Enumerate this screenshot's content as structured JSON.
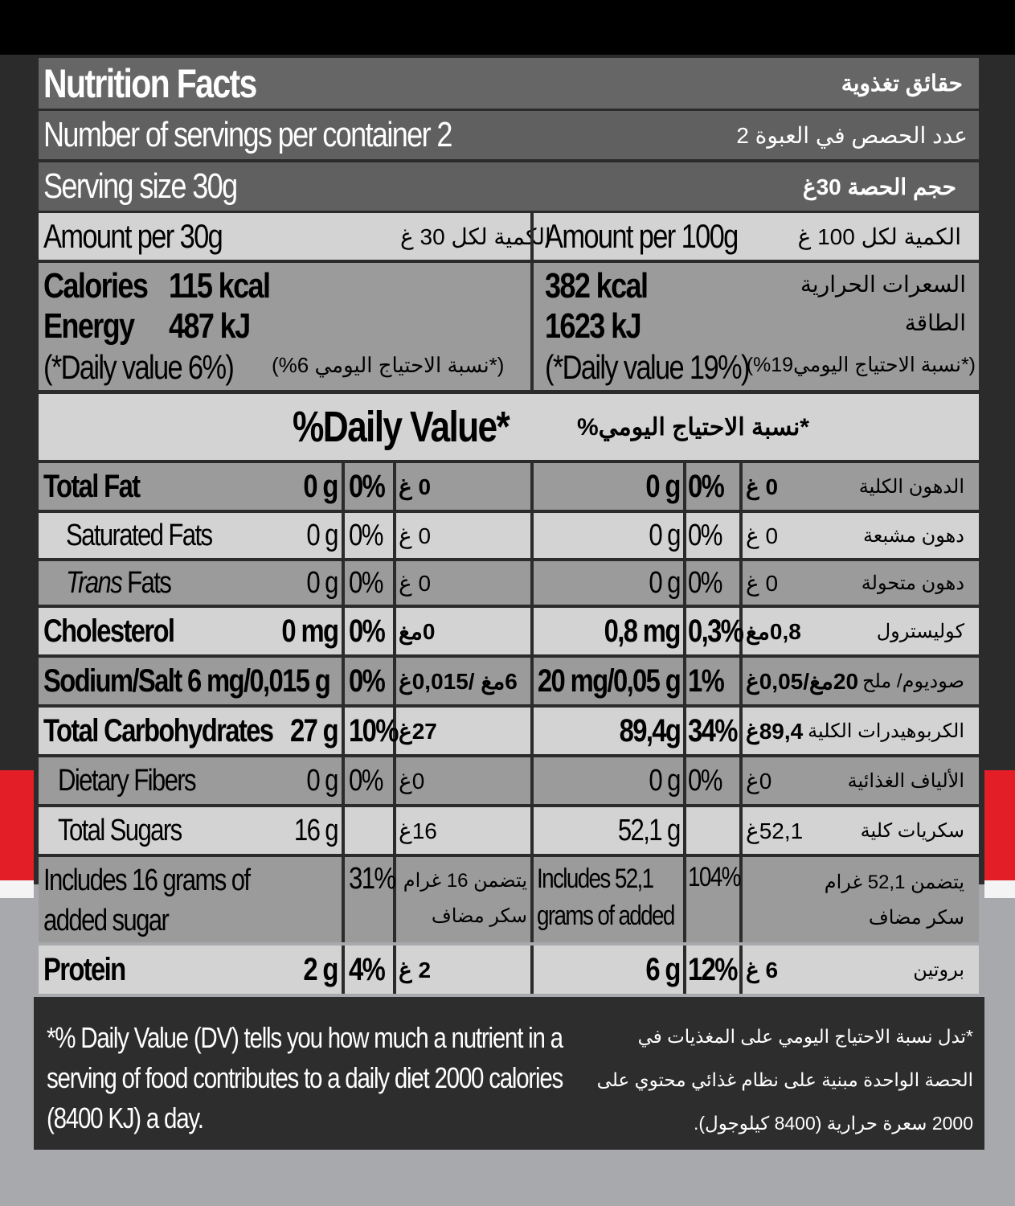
{
  "header": {
    "title": "Nutrition Facts",
    "title_ar": "حقائق تغذوية",
    "servings": "Number of servings per container 2",
    "servings_ar": "عدد الحصص في العبوة 2",
    "serving_size": "Serving size 30g",
    "serving_size_ar": "حجم الحصة 30غ"
  },
  "amount": {
    "left": "Amount per 30g",
    "left_ar": "الكمية لكل 30 غ",
    "right": "Amount per 100g",
    "right_ar": "الكمية لكل 100 غ"
  },
  "energy": {
    "cal_label": "Calories",
    "cal_30": "115 kcal",
    "energy_label": "Energy",
    "energy_30": "487 kJ",
    "dv_30": "(*Daily value 6%)",
    "dv_30_ar": "(*نسبة الاحتياج اليومي 6%)",
    "cal_100": "382 kcal",
    "energy_100": "1623 kJ",
    "dv_100": "(*Daily value 19%)",
    "dv_100_ar": "(*نسبة الاحتياج اليومي19%)",
    "cal_ar": "السعرات الحرارية",
    "energy_ar": "الطاقة"
  },
  "dv_header": {
    "en": "%Daily Value*",
    "ar": "*نسبة الاحتياج اليومي%"
  },
  "rows": [
    {
      "label": "Total Fat",
      "v30": "0 g",
      "p30": "0%",
      "a30": "0 غ",
      "v100": "0 g",
      "p100": "0%",
      "a100": "0 غ",
      "ar": "الدهون الكلية",
      "bold": true
    },
    {
      "label": "Saturated Fats",
      "v30": "0 g",
      "p30": "0%",
      "a30": "0 غ",
      "v100": "0 g",
      "p100": "0%",
      "a100": "0 غ",
      "ar": "دهون مشبعة",
      "indent": true
    },
    {
      "label_italic": "Trans",
      "label": " Fats",
      "v30": "0 g",
      "p30": "0%",
      "a30": "0 غ",
      "v100": "0 g",
      "p100": "0%",
      "a100": "0 غ",
      "ar": "دهون متحولة",
      "indent": true
    },
    {
      "label": "Cholesterol",
      "v30": "0 mg",
      "p30": "0%",
      "a30": "0مغ",
      "v100": "0,8 mg",
      "p100": "0,3%",
      "a100": "0,8مغ",
      "ar": "كوليسترول",
      "bold": true
    },
    {
      "label": "Sodium/Salt 6 mg/0,015 g",
      "v30": "",
      "p30": "0%",
      "a30": "6مغ /0,015غ",
      "v100": "20 mg/0,05 g",
      "p100": "1%",
      "a100": "20مغ/0,05غ",
      "ar": "صوديوم/ ملح",
      "bold": true
    },
    {
      "label": "Total Carbohydrates",
      "v30": "27 g",
      "p30": "10%",
      "a30": "27غ",
      "v100": "89,4g",
      "p100": "34%",
      "a100": "89,4غ",
      "ar": "الكربوهيدرات الكلية",
      "bold": true
    },
    {
      "label": "Dietary Fibers",
      "v30": "0 g",
      "p30": "0%",
      "a30": "0غ",
      "v100": "0 g",
      "p100": "0%",
      "a100": "0غ",
      "ar": "الألياف الغذائية",
      "indent": true
    },
    {
      "label": "Total Sugars",
      "v30": "16 g",
      "p30": "",
      "a30": "16غ",
      "v100": "52,1 g",
      "p100": "",
      "a100": "52,1غ",
      "ar": "سكريات كلية",
      "indent": true
    },
    {
      "label": "Includes 16 grams of added sugar",
      "v30": "",
      "p30": "31%",
      "a30": "يتضمن 16 غرام سكر مضاف",
      "v100": "Includes 52,1 grams of added sugar",
      "p100": "104%",
      "a100": "",
      "ar": "يتضمن 52,1 غرام سكر مضاف",
      "tall": true
    },
    {
      "label": "Protein",
      "v30": "2 g",
      "p30": "4%",
      "a30": "2 غ",
      "v100": "6 g",
      "p100": "12%",
      "a100": "6 غ",
      "ar": "بروتين",
      "bold": true
    }
  ],
  "footer": {
    "en": "*% Daily Value (DV) tells you how much a nutrient in a serving of food contributes to a daily diet 2000 calories (8400 KJ) a day.",
    "ar": "*تدل نسبة الاحتياج اليومي على المغذيات في الحصة الواحدة مبنية على نظام غذائي محتوي على 2000 سعرة حرارية (8400 كيلوجول)."
  }
}
